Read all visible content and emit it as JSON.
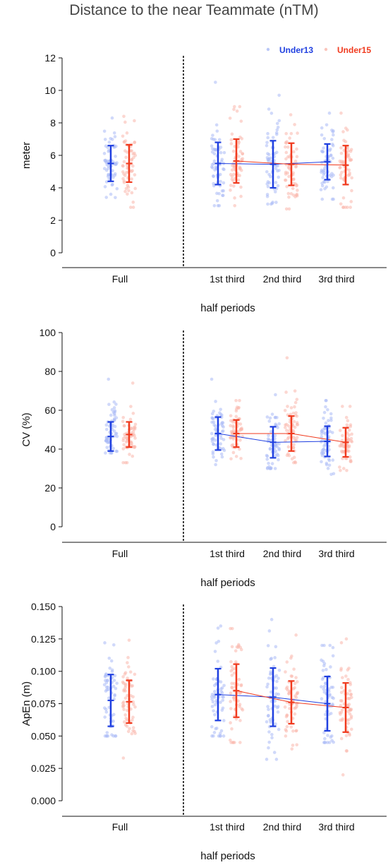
{
  "title": "Distance to the near Teammate (nTM)",
  "legend": {
    "position": "top-right",
    "entries": [
      {
        "name": "Under13",
        "color": "#1f3fe0"
      },
      {
        "name": "Under15",
        "color": "#f03a1e"
      }
    ]
  },
  "colors": {
    "under13": "#1f3fe0",
    "under15": "#f03a1e",
    "under13_points": "#a9b9f5",
    "under15_points": "#f9b7ab"
  },
  "chart_data": [
    {
      "type": "scatter",
      "ylabel": "meter",
      "xlabel": "half periods",
      "categories": [
        "Full",
        "1st third",
        "2nd third",
        "3rd third"
      ],
      "ylim": [
        0,
        12
      ],
      "yticks": [
        0,
        2,
        4,
        6,
        8,
        10,
        12
      ],
      "tick_labels": [
        "0",
        "2",
        "4",
        "6",
        "8",
        "10",
        "12"
      ],
      "divider_after": "Full",
      "series": [
        {
          "name": "Under13",
          "mean": [
            5.5,
            5.5,
            5.45,
            5.6
          ],
          "sd": [
            1.1,
            1.3,
            1.45,
            1.1
          ],
          "range_min": [
            3.4,
            2.9,
            3.0,
            3.3
          ],
          "range_max": [
            8.3,
            10.5,
            9.7,
            8.6
          ]
        },
        {
          "name": "Under15",
          "mean": [
            5.5,
            5.65,
            5.45,
            5.4
          ],
          "sd": [
            1.15,
            1.35,
            1.3,
            1.2
          ],
          "range_min": [
            2.8,
            2.9,
            2.7,
            2.8
          ],
          "range_max": [
            8.4,
            9.0,
            8.5,
            8.6
          ]
        }
      ]
    },
    {
      "type": "scatter",
      "ylabel": "CV (%)",
      "xlabel": "half periods",
      "categories": [
        "Full",
        "1st third",
        "2nd third",
        "3rd third"
      ],
      "ylim": [
        0,
        100
      ],
      "yticks": [
        0,
        20,
        40,
        60,
        80,
        100
      ],
      "tick_labels": [
        "0",
        "20",
        "40",
        "60",
        "80",
        "100"
      ],
      "divider_after": "Full",
      "series": [
        {
          "name": "Under13",
          "mean": [
            46.5,
            48.0,
            43.5,
            44.0
          ],
          "sd": [
            7.5,
            8.5,
            8.0,
            7.8
          ],
          "range_min": [
            38,
            32,
            30,
            27
          ],
          "range_max": [
            76,
            76,
            68,
            65
          ]
        },
        {
          "name": "Under15",
          "mean": [
            47.5,
            48.0,
            48.0,
            43.5
          ],
          "sd": [
            6.5,
            7.0,
            9.0,
            7.5
          ],
          "range_min": [
            33,
            35,
            33,
            29
          ],
          "range_max": [
            74,
            65,
            87,
            62
          ]
        }
      ]
    },
    {
      "type": "scatter",
      "ylabel": "ApEn (m)",
      "xlabel": "half periods",
      "categories": [
        "Full",
        "1st third",
        "2nd third",
        "3rd third"
      ],
      "ylim": [
        0,
        0.15
      ],
      "yticks": [
        0,
        0.025,
        0.05,
        0.075,
        0.1,
        0.125,
        0.15
      ],
      "tick_labels": [
        "0.000",
        "0.025",
        "0.050",
        "0.075",
        "0.100",
        "0.125",
        "0.150"
      ],
      "divider_after": "Full",
      "series": [
        {
          "name": "Under13",
          "mean": [
            0.0775,
            0.082,
            0.08,
            0.075
          ],
          "sd": [
            0.02,
            0.02,
            0.0225,
            0.021
          ],
          "range_min": [
            0.05,
            0.05,
            0.032,
            0.045
          ],
          "range_max": [
            0.122,
            0.135,
            0.14,
            0.12
          ]
        },
        {
          "name": "Under15",
          "mean": [
            0.0765,
            0.085,
            0.076,
            0.072
          ],
          "sd": [
            0.0165,
            0.0205,
            0.0165,
            0.019
          ],
          "range_min": [
            0.033,
            0.045,
            0.04,
            0.02
          ],
          "range_max": [
            0.124,
            0.133,
            0.128,
            0.125
          ]
        }
      ]
    }
  ]
}
